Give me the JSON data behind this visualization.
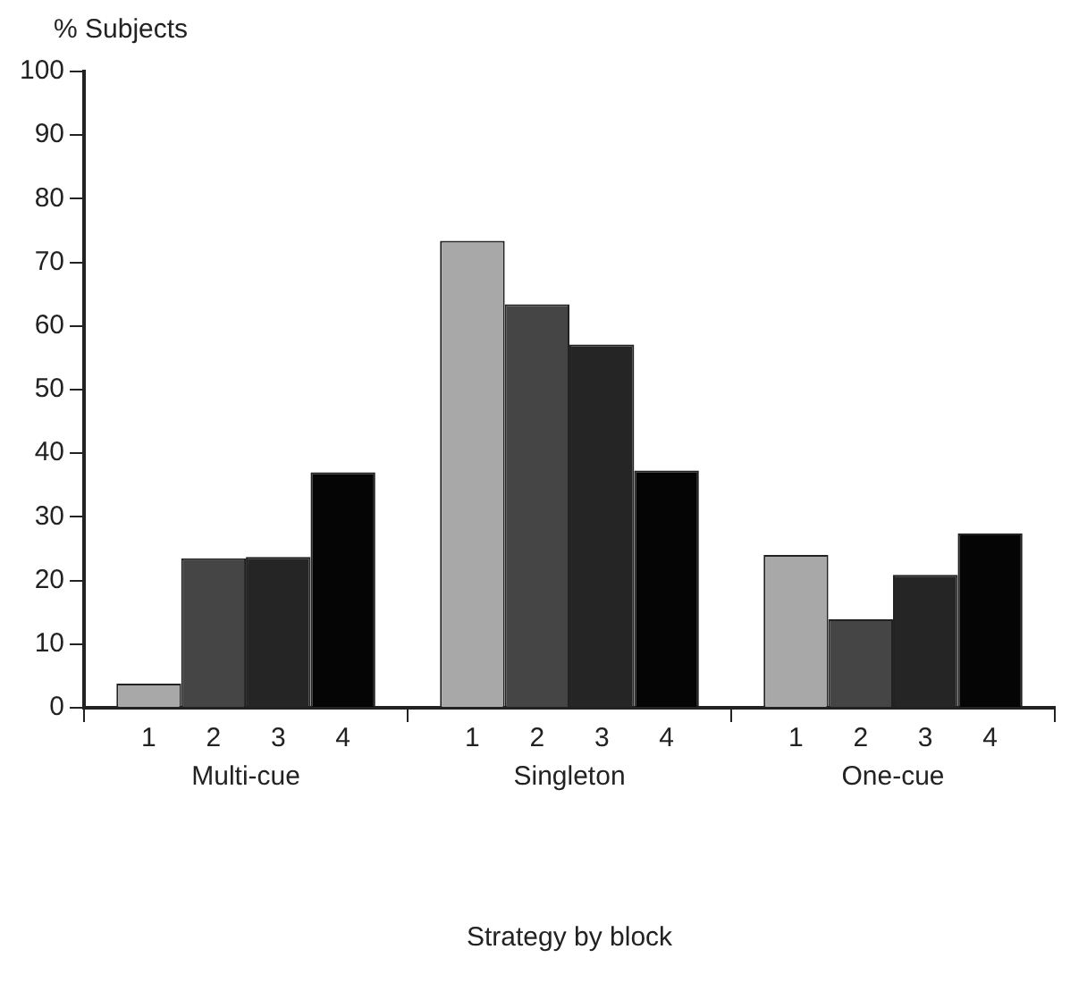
{
  "chart_data": {
    "type": "bar",
    "ylabel": "% Subjects",
    "xlabel": "Strategy by block",
    "categories": [
      "Multi-cue",
      "Singleton",
      "One-cue"
    ],
    "series": [
      {
        "name": "1",
        "color": "#a8a8a8",
        "values": [
          3.8,
          73.4,
          24
        ]
      },
      {
        "name": "2",
        "color": "#454545",
        "values": [
          23.5,
          63.4,
          13.9
        ]
      },
      {
        "name": "3",
        "color": "#252525",
        "values": [
          23.7,
          57.1,
          20.9
        ]
      },
      {
        "name": "4",
        "color": "#050505",
        "values": [
          37,
          37.3,
          27.4
        ]
      }
    ],
    "ylim": [
      0,
      100
    ],
    "yticks": [
      0,
      10,
      20,
      30,
      40,
      50,
      60,
      70,
      80,
      90,
      100
    ],
    "grid": false,
    "legend": false
  }
}
